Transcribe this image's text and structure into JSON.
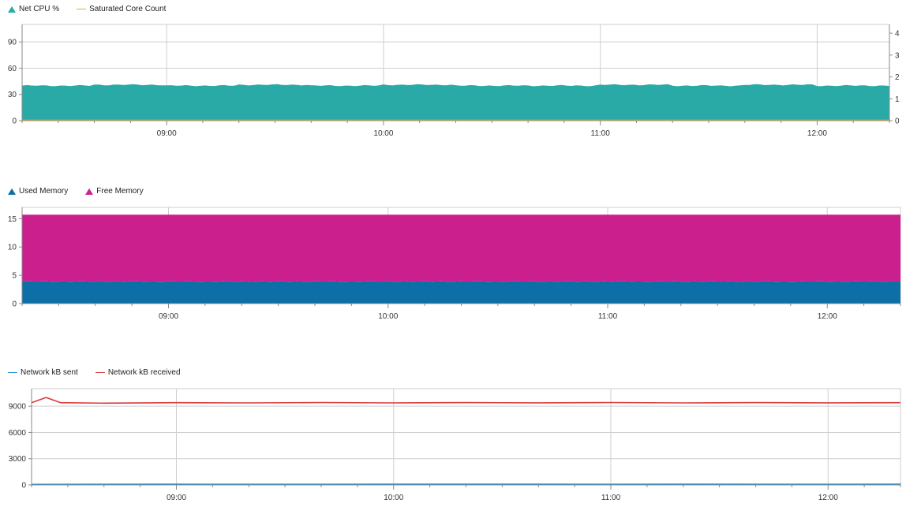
{
  "colors": {
    "net_cpu": "#2aaaa6",
    "saturated_core": "#e0b020",
    "used_memory": "#0e6fa6",
    "free_memory": "#cc1f8e",
    "network_sent": "#2b8fd0",
    "network_received": "#d93b3b",
    "grid": "#cfcfcf",
    "axis": "#8a8a8a"
  },
  "chart_data": [
    {
      "type": "area",
      "title": "",
      "legend": [
        {
          "name": "Net CPU %",
          "marker": "triangle"
        },
        {
          "name": "Saturated Core Count",
          "marker": "line"
        }
      ],
      "x_ticks": [
        "09:00",
        "10:00",
        "11:00",
        "12:00"
      ],
      "xlim": [
        "08:20",
        "12:20"
      ],
      "ylim": [
        0,
        110
      ],
      "y_ticks": [
        0,
        30,
        60,
        90
      ],
      "y2lim": [
        0,
        4.4
      ],
      "y2_ticks": [
        0,
        1,
        2,
        3,
        4
      ],
      "grid": true,
      "series": [
        {
          "name": "Net CPU %",
          "axis": "left",
          "x": [
            "08:20",
            "08:40",
            "09:00",
            "09:20",
            "09:40",
            "10:00",
            "10:20",
            "10:40",
            "11:00",
            "11:20",
            "11:40",
            "12:00",
            "12:20"
          ],
          "values": [
            40,
            41,
            40,
            41,
            40,
            41,
            40,
            40,
            41,
            40,
            41,
            40,
            40
          ]
        },
        {
          "name": "Saturated Core Count",
          "axis": "right",
          "x": [
            "08:20",
            "12:20"
          ],
          "values": [
            0,
            0
          ]
        }
      ]
    },
    {
      "type": "area",
      "title": "",
      "stacked": true,
      "legend": [
        {
          "name": "Used Memory",
          "marker": "triangle"
        },
        {
          "name": "Free Memory",
          "marker": "triangle"
        }
      ],
      "x_ticks": [
        "09:00",
        "10:00",
        "11:00",
        "12:00"
      ],
      "xlim": [
        "08:20",
        "12:20"
      ],
      "ylim": [
        0,
        17
      ],
      "y_ticks": [
        0,
        5,
        10,
        15
      ],
      "grid": true,
      "series": [
        {
          "name": "Used Memory",
          "x": [
            "08:20",
            "09:00",
            "10:00",
            "11:00",
            "12:00",
            "12:20"
          ],
          "values": [
            3.9,
            3.9,
            3.9,
            3.9,
            3.9,
            3.9
          ]
        },
        {
          "name": "Free Memory",
          "x": [
            "08:20",
            "09:00",
            "10:00",
            "11:00",
            "12:00",
            "12:20"
          ],
          "values": [
            11.8,
            11.8,
            11.8,
            11.8,
            11.8,
            11.8
          ]
        }
      ]
    },
    {
      "type": "line",
      "title": "",
      "legend": [
        {
          "name": "Network kB sent",
          "marker": "line"
        },
        {
          "name": "Network kB received",
          "marker": "line"
        }
      ],
      "x_ticks": [
        "09:00",
        "10:00",
        "11:00",
        "12:00"
      ],
      "xlim": [
        "08:20",
        "12:20"
      ],
      "ylim": [
        0,
        11000
      ],
      "y_ticks": [
        0,
        3000,
        6000,
        9000
      ],
      "grid": true,
      "series": [
        {
          "name": "Network kB sent",
          "x": [
            "08:20",
            "09:00",
            "09:40",
            "10:20",
            "10:40",
            "11:00",
            "11:20",
            "12:00",
            "12:20"
          ],
          "values": [
            60,
            80,
            70,
            90,
            80,
            70,
            90,
            70,
            80
          ]
        },
        {
          "name": "Network kB received",
          "x": [
            "08:20",
            "08:24",
            "08:28",
            "08:40",
            "09:00",
            "09:20",
            "09:40",
            "10:00",
            "10:20",
            "10:40",
            "11:00",
            "11:20",
            "11:40",
            "12:00",
            "12:20"
          ],
          "values": [
            9400,
            10000,
            9400,
            9350,
            9400,
            9380,
            9420,
            9380,
            9410,
            9390,
            9420,
            9380,
            9410,
            9390,
            9400
          ]
        }
      ]
    }
  ]
}
